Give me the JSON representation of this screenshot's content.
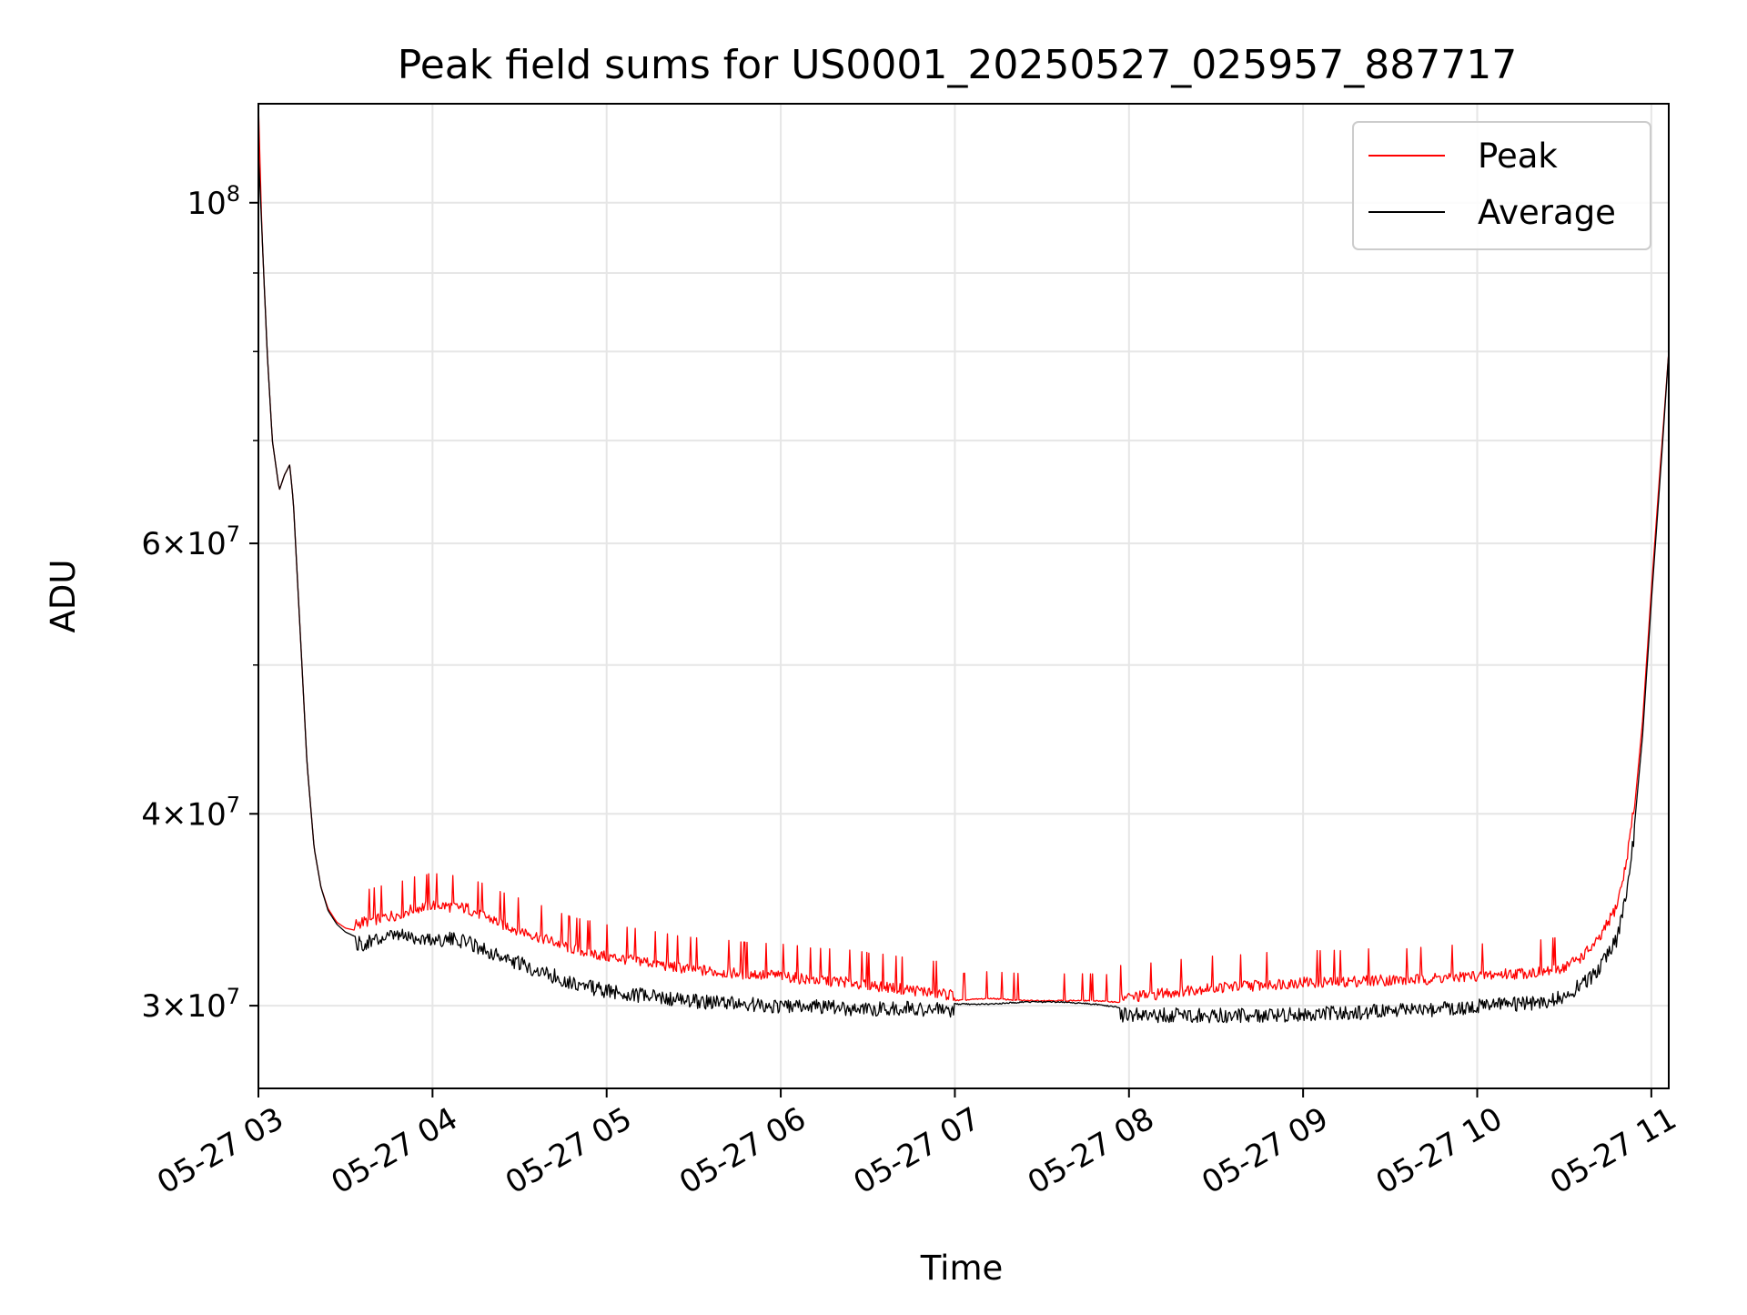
{
  "chart_data": {
    "type": "line",
    "title": "Peak field sums for US0001_20250527_025957_887717",
    "xlabel": "Time",
    "ylabel": "ADU",
    "yscale": "log",
    "xlim_hours": [
      3.0,
      11.1
    ],
    "ylim": [
      26500000,
      116000000
    ],
    "grid": true,
    "legend_position": "upper right",
    "x_ticks": [
      {
        "value": 3,
        "label": "05-27 03"
      },
      {
        "value": 4,
        "label": "05-27 04"
      },
      {
        "value": 5,
        "label": "05-27 05"
      },
      {
        "value": 6,
        "label": "05-27 06"
      },
      {
        "value": 7,
        "label": "05-27 07"
      },
      {
        "value": 8,
        "label": "05-27 08"
      },
      {
        "value": 9,
        "label": "05-27 09"
      },
      {
        "value": 10,
        "label": "05-27 10"
      },
      {
        "value": 11,
        "label": "05-27 11"
      }
    ],
    "y_ticks": [
      {
        "value": 100000000,
        "base": "10",
        "exp": "8"
      },
      {
        "value": 60000000,
        "base": "6×10",
        "exp": "7"
      },
      {
        "value": 40000000,
        "base": "4×10",
        "exp": "7"
      },
      {
        "value": 30000000,
        "base": "3×10",
        "exp": "7"
      }
    ],
    "y_minor_ticks": [
      50000000,
      70000000,
      80000000,
      90000000
    ],
    "series": [
      {
        "name": "Peak",
        "color": "#ff0000",
        "x_hours": [
          3.0,
          3.02,
          3.05,
          3.08,
          3.12,
          3.15,
          3.18,
          3.2,
          3.22,
          3.25,
          3.28,
          3.32,
          3.36,
          3.4,
          3.45,
          3.5,
          3.55,
          3.6,
          3.65,
          3.7,
          3.8,
          3.9,
          4.0,
          4.1,
          4.2,
          4.3,
          4.4,
          4.5,
          4.6,
          4.7,
          4.8,
          4.9,
          5.0,
          5.2,
          5.4,
          5.6,
          5.8,
          6.0,
          6.2,
          6.4,
          6.6,
          6.8,
          7.0,
          7.2,
          7.4,
          7.6,
          7.8,
          8.0,
          8.2,
          8.4,
          8.6,
          8.8,
          9.0,
          9.2,
          9.4,
          9.6,
          9.8,
          10.0,
          10.2,
          10.4,
          10.5,
          10.6,
          10.7,
          10.8,
          10.85,
          10.9,
          10.95,
          11.0,
          11.05,
          11.1
        ],
        "values": [
          116000000,
          96000000,
          80000000,
          70000000,
          65000000,
          66500000,
          67500000,
          64000000,
          58000000,
          50000000,
          43000000,
          38000000,
          35800000,
          34700000,
          34000000,
          33700000,
          33600000,
          33700000,
          33800000,
          33900000,
          34100000,
          34400000,
          34600000,
          34500000,
          34400000,
          34000000,
          33600000,
          33300000,
          33000000,
          32700000,
          32400000,
          32200000,
          32000000,
          31800000,
          31500000,
          31300000,
          31200000,
          31100000,
          30900000,
          30800000,
          30600000,
          30400000,
          30200000,
          30300000,
          30200000,
          30200000,
          30200000,
          30100000,
          30300000,
          30500000,
          30600000,
          30700000,
          30800000,
          30800000,
          30900000,
          30900000,
          31000000,
          31100000,
          31200000,
          31300000,
          31500000,
          32000000,
          32800000,
          34500000,
          36500000,
          40000000,
          46000000,
          56000000,
          67000000,
          80000000
        ]
      },
      {
        "name": "Average",
        "color": "#000000",
        "x_hours": [
          3.0,
          3.02,
          3.05,
          3.08,
          3.12,
          3.15,
          3.18,
          3.2,
          3.22,
          3.25,
          3.28,
          3.32,
          3.36,
          3.4,
          3.45,
          3.5,
          3.55,
          3.6,
          3.65,
          3.7,
          3.8,
          3.9,
          4.0,
          4.1,
          4.2,
          4.3,
          4.4,
          4.5,
          4.6,
          4.7,
          4.8,
          4.9,
          5.0,
          5.2,
          5.4,
          5.6,
          5.8,
          6.0,
          6.2,
          6.4,
          6.6,
          6.8,
          7.0,
          7.2,
          7.4,
          7.6,
          7.8,
          8.0,
          8.2,
          8.4,
          8.6,
          8.8,
          9.0,
          9.2,
          9.4,
          9.6,
          9.8,
          10.0,
          10.2,
          10.4,
          10.5,
          10.6,
          10.7,
          10.8,
          10.85,
          10.9,
          10.95,
          11.0,
          11.05,
          11.1
        ],
        "values": [
          108000000,
          96000000,
          80000000,
          70000000,
          65000000,
          66500000,
          67500000,
          64000000,
          58000000,
          50000000,
          43000000,
          38000000,
          35800000,
          34600000,
          33900000,
          33500000,
          33300000,
          33300000,
          33400000,
          33500000,
          33700000,
          33600000,
          33500000,
          33500000,
          33400000,
          33000000,
          32600000,
          32300000,
          32000000,
          31700000,
          31400000,
          31200000,
          31000000,
          30800000,
          30600000,
          30500000,
          30400000,
          30300000,
          30300000,
          30200000,
          30200000,
          30200000,
          30100000,
          30100000,
          30200000,
          30200000,
          30100000,
          29900000,
          29900000,
          29900000,
          29900000,
          29900000,
          29950000,
          30000000,
          30050000,
          30100000,
          30200000,
          30300000,
          30400000,
          30500000,
          30800000,
          31300000,
          32000000,
          33500000,
          35500000,
          39000000,
          45000000,
          55000000,
          66000000,
          80000000
        ]
      }
    ]
  }
}
